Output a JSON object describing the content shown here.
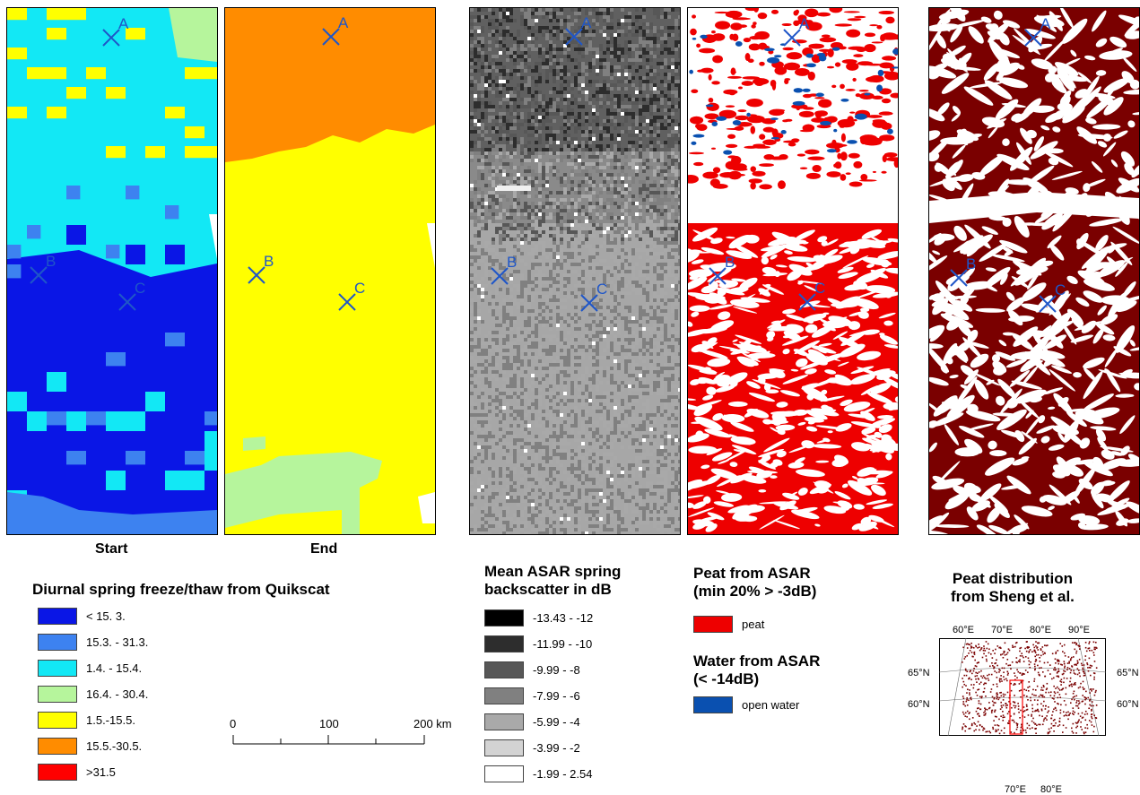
{
  "panels": [
    {
      "id": "start",
      "caption": "Start"
    },
    {
      "id": "end",
      "caption": "End"
    },
    {
      "id": "asar",
      "caption": ""
    },
    {
      "id": "peat_asar",
      "caption": ""
    },
    {
      "id": "sheng",
      "caption": ""
    }
  ],
  "markers": [
    "A",
    "B",
    "C"
  ],
  "legend_quikscat": {
    "title": "Diurnal spring freeze/thaw from Quikscat",
    "items": [
      {
        "label": "< 15. 3.",
        "color": "#0a16e6"
      },
      {
        "label": "15.3. - 31.3.",
        "color": "#3d82f0"
      },
      {
        "label": "1.4. - 15.4.",
        "color": "#12e8f5"
      },
      {
        "label": "16.4. - 30.4.",
        "color": "#b6f59c"
      },
      {
        "label": "1.5.-15.5.",
        "color": "#ffff00"
      },
      {
        "label": "15.5.-30.5.",
        "color": "#ff8c00"
      },
      {
        "label": ">31.5",
        "color": "#ff0000"
      }
    ]
  },
  "legend_asar": {
    "title_line1": "Mean ASAR spring",
    "title_line2": "backscatter in dB",
    "items": [
      {
        "label": "-13.43 - -12",
        "color": "#000000"
      },
      {
        "label": "-11.99 - -10",
        "color": "#2d2d2d"
      },
      {
        "label": "-9.99 - -8",
        "color": "#575757"
      },
      {
        "label": "-7.99 - -6",
        "color": "#808080"
      },
      {
        "label": "-5.99 - -4",
        "color": "#a9a9a9"
      },
      {
        "label": "-3.99 - -2",
        "color": "#d3d3d3"
      },
      {
        "label": "-1.99 - 2.54",
        "color": "#ffffff"
      }
    ]
  },
  "legend_peat": {
    "title_line1": "Peat from ASAR",
    "title_line2": "(min 20% > -3dB)",
    "peat_label": "peat",
    "peat_color": "#ee0000",
    "water_title_line1": "Water from ASAR",
    "water_title_line2": "(< -14dB)",
    "water_label": "open water",
    "water_color": "#0a50b0"
  },
  "legend_sheng": {
    "title_line1": "Peat distribution",
    "title_line2": "from Sheng et al.",
    "peat_color": "#7a0000",
    "lon_top": [
      "60°E",
      "70°E",
      "80°E",
      "90°E"
    ],
    "lon_bottom": [
      "70°E",
      "80°E"
    ],
    "lat_left": [
      "65°N",
      "60°N"
    ],
    "lat_right": [
      "65°N",
      "60°N"
    ]
  },
  "scale_bar": {
    "labels": [
      "0",
      "100",
      "200 km"
    ]
  }
}
